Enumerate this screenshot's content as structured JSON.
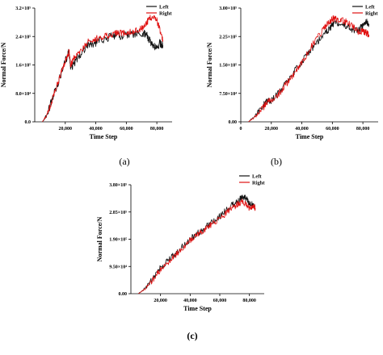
{
  "colors": {
    "left": "#111111",
    "right": "#e01010"
  },
  "chart_data": [
    {
      "type": "line",
      "caption": "(a)",
      "xlabel": "Time Step",
      "ylabel": "Normal Force/N",
      "xlim": [
        0,
        90000
      ],
      "ylim": [
        0,
        320000
      ],
      "x_ticks": [
        20000,
        40000,
        60000,
        80000
      ],
      "x_tick_labels": [
        "20,000",
        "40,000",
        "60,000",
        "80,000"
      ],
      "y_ticks": [
        0,
        80000,
        160000,
        240000,
        320000
      ],
      "y_tick_labels": [
        "0.0",
        "8.0×10⁴",
        "1.6×10⁵",
        "2.4×10⁵",
        "3.2×10⁵"
      ],
      "legend": {
        "position": "top-right",
        "entries": [
          "Left",
          "Right"
        ]
      },
      "series": [
        {
          "name": "Left",
          "color": "#111111",
          "noise": 0.035,
          "x": [
            5000,
            8000,
            12000,
            16000,
            20000,
            22500,
            23500,
            26000,
            30000,
            35000,
            40000,
            45000,
            50000,
            55000,
            60000,
            65000,
            70000,
            73000,
            75000,
            78000,
            80000,
            82000,
            84000
          ],
          "y": [
            0,
            20000,
            70000,
            120000,
            170000,
            198000,
            150000,
            165000,
            190000,
            215000,
            222000,
            232000,
            240000,
            242000,
            245000,
            248000,
            246000,
            248000,
            230000,
            215000,
            210000,
            222000,
            215000
          ]
        },
        {
          "name": "Right",
          "color": "#e01010",
          "noise": 0.03,
          "x": [
            5000,
            8000,
            12000,
            16000,
            20000,
            22500,
            23500,
            26000,
            30000,
            35000,
            40000,
            45000,
            50000,
            55000,
            60000,
            65000,
            70000,
            73000,
            75000,
            78000,
            80000,
            82000,
            84000
          ],
          "y": [
            0,
            20000,
            70000,
            120000,
            170000,
            198000,
            160000,
            180000,
            200000,
            225000,
            235000,
            238000,
            245000,
            250000,
            250000,
            255000,
            262000,
            275000,
            290000,
            300000,
            285000,
            260000,
            230000
          ]
        }
      ]
    },
    {
      "type": "line",
      "caption": "(b)",
      "xlabel": "Time Step",
      "ylabel": "Normal Force/N",
      "xlim": [
        0,
        90000
      ],
      "ylim": [
        0,
        300000
      ],
      "x_ticks": [
        0,
        20000,
        40000,
        60000,
        80000
      ],
      "x_tick_labels": [
        "0",
        "20,000",
        "40,000",
        "60,000",
        "80,000"
      ],
      "y_ticks": [
        0,
        75000,
        150000,
        225000,
        300000
      ],
      "y_tick_labels": [
        "0.00",
        "7.50×10⁴",
        "1.50×10⁵",
        "2.25×10⁵",
        "3.00×10⁵"
      ],
      "legend": {
        "position": "top-right",
        "entries": [
          "Left",
          "Right"
        ]
      },
      "series": [
        {
          "name": "Left",
          "color": "#111111",
          "noise": 0.03,
          "x": [
            5000,
            10000,
            15000,
            18000,
            20000,
            25000,
            30000,
            35000,
            40000,
            45000,
            50000,
            55000,
            58000,
            60000,
            62000,
            66000,
            70000,
            75000,
            78000,
            80000,
            82000,
            84000
          ],
          "y": [
            0,
            18000,
            45000,
            58000,
            55000,
            78000,
            105000,
            132000,
            160000,
            185000,
            210000,
            235000,
            245000,
            255000,
            262000,
            258000,
            250000,
            240000,
            245000,
            255000,
            265000,
            258000
          ]
        },
        {
          "name": "Right",
          "color": "#e01010",
          "noise": 0.03,
          "x": [
            5000,
            10000,
            15000,
            18000,
            20000,
            25000,
            30000,
            35000,
            40000,
            45000,
            50000,
            55000,
            58000,
            60000,
            62000,
            66000,
            70000,
            75000,
            78000,
            80000,
            82000,
            84000
          ],
          "y": [
            0,
            15000,
            40000,
            55000,
            52000,
            75000,
            100000,
            128000,
            158000,
            190000,
            222000,
            250000,
            265000,
            272000,
            270000,
            268000,
            262000,
            245000,
            235000,
            240000,
            235000,
            230000
          ]
        }
      ]
    },
    {
      "type": "line",
      "caption": "(c)",
      "xlabel": "Time Step",
      "ylabel": "Normal Force/N",
      "xlim": [
        0,
        90000
      ],
      "ylim": [
        0,
        380000
      ],
      "x_ticks": [
        20000,
        40000,
        60000,
        80000
      ],
      "x_tick_labels": [
        "20,000",
        "40,000",
        "60,000",
        "80,000"
      ],
      "y_ticks": [
        0,
        95000,
        190000,
        285000,
        380000
      ],
      "y_tick_labels": [
        "0.00",
        "9.50×10⁴",
        "1.90×10⁵",
        "2.85×10⁵",
        "3.80×10⁵"
      ],
      "legend": {
        "position": "top-right",
        "entries": [
          "Left",
          "Right"
        ]
      },
      "series": [
        {
          "name": "Left",
          "color": "#111111",
          "noise": 0.03,
          "x": [
            5000,
            10000,
            15000,
            20000,
            25000,
            30000,
            35000,
            40000,
            45000,
            50000,
            55000,
            60000,
            65000,
            70000,
            73000,
            75000,
            78000,
            80000,
            82000,
            84000
          ],
          "y": [
            0,
            20000,
            55000,
            90000,
            115000,
            140000,
            165000,
            190000,
            210000,
            230000,
            250000,
            270000,
            295000,
            315000,
            325000,
            340000,
            330000,
            315000,
            310000,
            305000
          ]
        },
        {
          "name": "Right",
          "color": "#e01010",
          "noise": 0.03,
          "x": [
            5000,
            10000,
            15000,
            20000,
            25000,
            30000,
            35000,
            40000,
            45000,
            50000,
            55000,
            60000,
            65000,
            70000,
            73000,
            75000,
            78000,
            80000,
            82000,
            84000
          ],
          "y": [
            0,
            18000,
            50000,
            85000,
            110000,
            135000,
            160000,
            185000,
            205000,
            225000,
            245000,
            262000,
            285000,
            305000,
            315000,
            320000,
            310000,
            300000,
            305000,
            300000
          ]
        }
      ]
    }
  ]
}
